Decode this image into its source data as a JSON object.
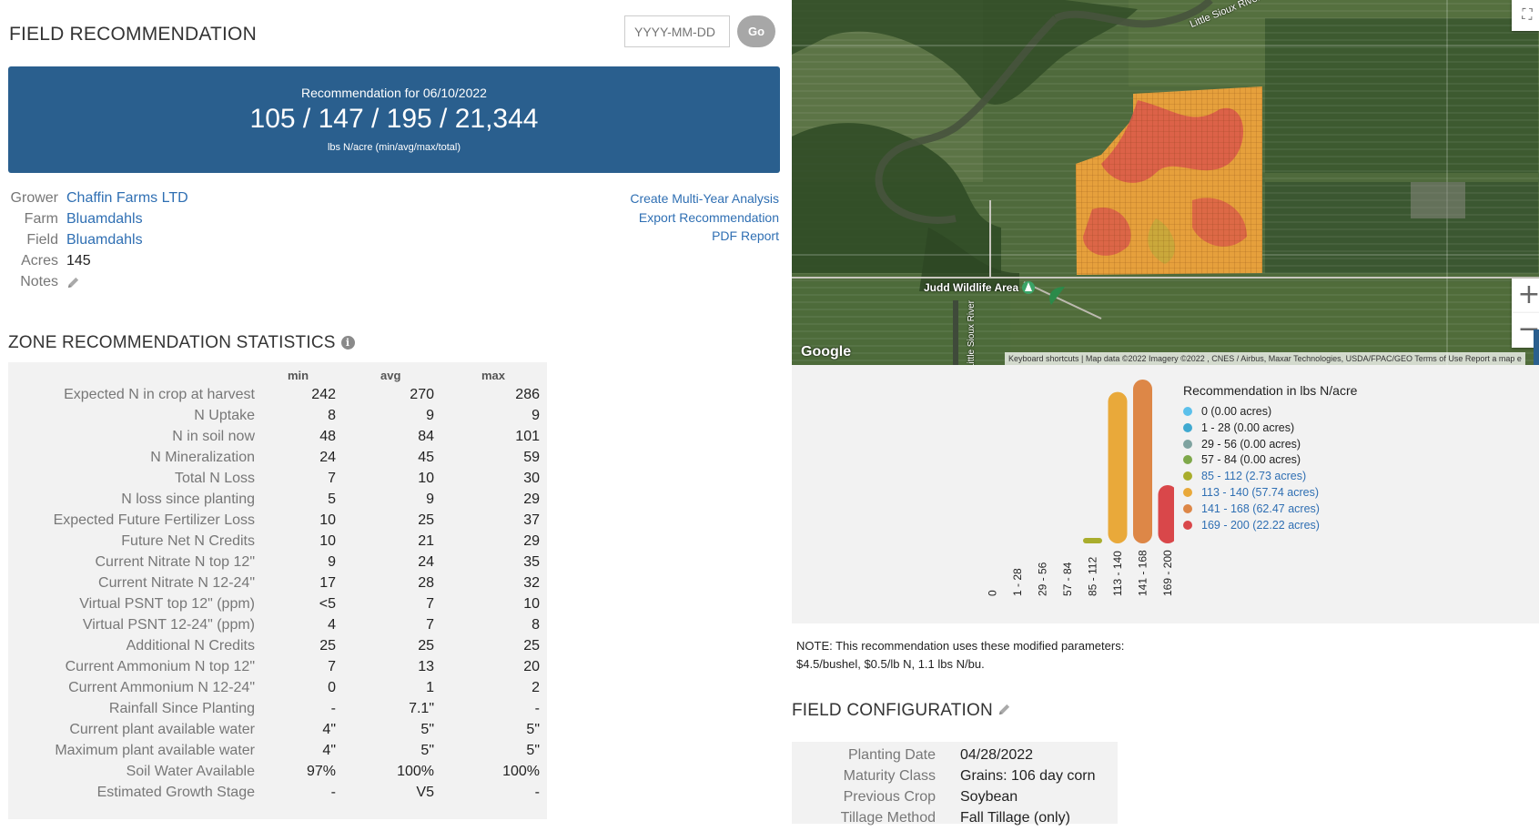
{
  "header": {
    "title": "FIELD RECOMMENDATION",
    "date_placeholder": "YYYY-MM-DD",
    "go_label": "Go"
  },
  "banner": {
    "label": "Recommendation for 06/10/2022",
    "values": "105 / 147 / 195 / 21,344",
    "unit": "lbs N/acre (min/avg/max/total)"
  },
  "info": {
    "grower_label": "Grower",
    "grower": "Chaffin Farms LTD",
    "farm_label": "Farm",
    "farm": "Bluamdahls",
    "field_label": "Field",
    "field": "Bluamdahls",
    "acres_label": "Acres",
    "acres": "145",
    "notes_label": "Notes"
  },
  "actions": {
    "multi_year": "Create Multi-Year Analysis",
    "export": "Export Recommendation",
    "pdf": "PDF Report"
  },
  "zone_stats": {
    "title": "ZONE RECOMMENDATION STATISTICS",
    "columns": [
      "min",
      "avg",
      "max"
    ],
    "rows": [
      {
        "label": "Expected N in crop at harvest",
        "min": "242",
        "avg": "270",
        "max": "286"
      },
      {
        "label": "N Uptake",
        "min": "8",
        "avg": "9",
        "max": "9"
      },
      {
        "label": "N in soil now",
        "min": "48",
        "avg": "84",
        "max": "101"
      },
      {
        "label": "N Mineralization",
        "min": "24",
        "avg": "45",
        "max": "59"
      },
      {
        "label": "Total N Loss",
        "min": "7",
        "avg": "10",
        "max": "30"
      },
      {
        "label": "N loss since planting",
        "min": "5",
        "avg": "9",
        "max": "29"
      },
      {
        "label": "Expected Future Fertilizer Loss",
        "min": "10",
        "avg": "25",
        "max": "37"
      },
      {
        "label": "Future Net N Credits",
        "min": "10",
        "avg": "21",
        "max": "29"
      },
      {
        "label": "Current Nitrate N top 12\"",
        "min": "9",
        "avg": "24",
        "max": "35"
      },
      {
        "label": "Current Nitrate N 12-24\"",
        "min": "17",
        "avg": "28",
        "max": "32"
      },
      {
        "label": "Virtual PSNT top 12\" (ppm)",
        "min": "<5",
        "avg": "7",
        "max": "10"
      },
      {
        "label": "Virtual PSNT 12-24\" (ppm)",
        "min": "4",
        "avg": "7",
        "max": "8"
      },
      {
        "label": "Additional N Credits",
        "min": "25",
        "avg": "25",
        "max": "25"
      },
      {
        "label": "Current Ammonium N top 12\"",
        "min": "7",
        "avg": "13",
        "max": "20"
      },
      {
        "label": "Current Ammonium N 12-24\"",
        "min": "0",
        "avg": "1",
        "max": "2"
      },
      {
        "label": "Rainfall Since Planting",
        "min": "-",
        "avg": "7.1\"",
        "max": "-"
      },
      {
        "label": "Current plant available water",
        "min": "4\"",
        "avg": "5\"",
        "max": "5\""
      },
      {
        "label": "Maximum plant available water",
        "min": "4\"",
        "avg": "5\"",
        "max": "5\""
      },
      {
        "label": "Soil Water Available",
        "min": "97%",
        "avg": "100%",
        "max": "100%"
      },
      {
        "label": "Estimated Growth Stage",
        "min": "-",
        "avg": "V5",
        "max": "-"
      }
    ]
  },
  "map": {
    "labels": {
      "river_top": "Little Sioux River",
      "wildlife": "Judd Wildlife Area",
      "river_side": "Little Sioux River",
      "google": "Google"
    },
    "attribution": "Keyboard shortcuts  |  Map data ©2022 Imagery ©2022 , CNES / Airbus, Maxar Technologies, USDA/FPAC/GEO    Terms of Use    Report a map e",
    "zoom_in": "+",
    "zoom_out": "−"
  },
  "chart_data": {
    "type": "bar",
    "title": "Recommendation in lbs N/acre",
    "categories": [
      "0",
      "1 - 28",
      "29 - 56",
      "57 - 84",
      "85 - 112",
      "113 - 140",
      "141 - 168",
      "169 - 200"
    ],
    "values": [
      0.0,
      0.0,
      0.0,
      0.0,
      2.73,
      57.74,
      62.47,
      22.22
    ],
    "colors": [
      "#5bc0eb",
      "#3fa9d0",
      "#7fa3a0",
      "#7ea84a",
      "#a9ad2c",
      "#e9a93a",
      "#dd8747",
      "#d9474a"
    ],
    "legend": [
      "0 (0.00 acres)",
      "1 - 28 (0.00 acres)",
      "29 - 56 (0.00 acres)",
      "57 - 84 (0.00 acres)",
      "85 - 112 (2.73 acres)",
      "113 - 140 (57.74 acres)",
      "141 - 168 (62.47 acres)",
      "169 - 200 (22.22 acres)"
    ],
    "legend_linked": [
      false,
      false,
      false,
      false,
      true,
      true,
      true,
      true
    ]
  },
  "note": {
    "line1": "NOTE: This recommendation uses these modified parameters:",
    "line2": "$4.5/bushel, $0.5/lb N, 1.1 lbs N/bu."
  },
  "field_config": {
    "title": "FIELD CONFIGURATION",
    "rows": [
      {
        "label": "Planting Date",
        "value": "04/28/2022"
      },
      {
        "label": "Maturity Class",
        "value": "Grains: 106 day corn"
      },
      {
        "label": "Previous Crop",
        "value": "Soybean"
      },
      {
        "label": "Tillage Method",
        "value": "Fall Tillage (only)"
      }
    ]
  }
}
